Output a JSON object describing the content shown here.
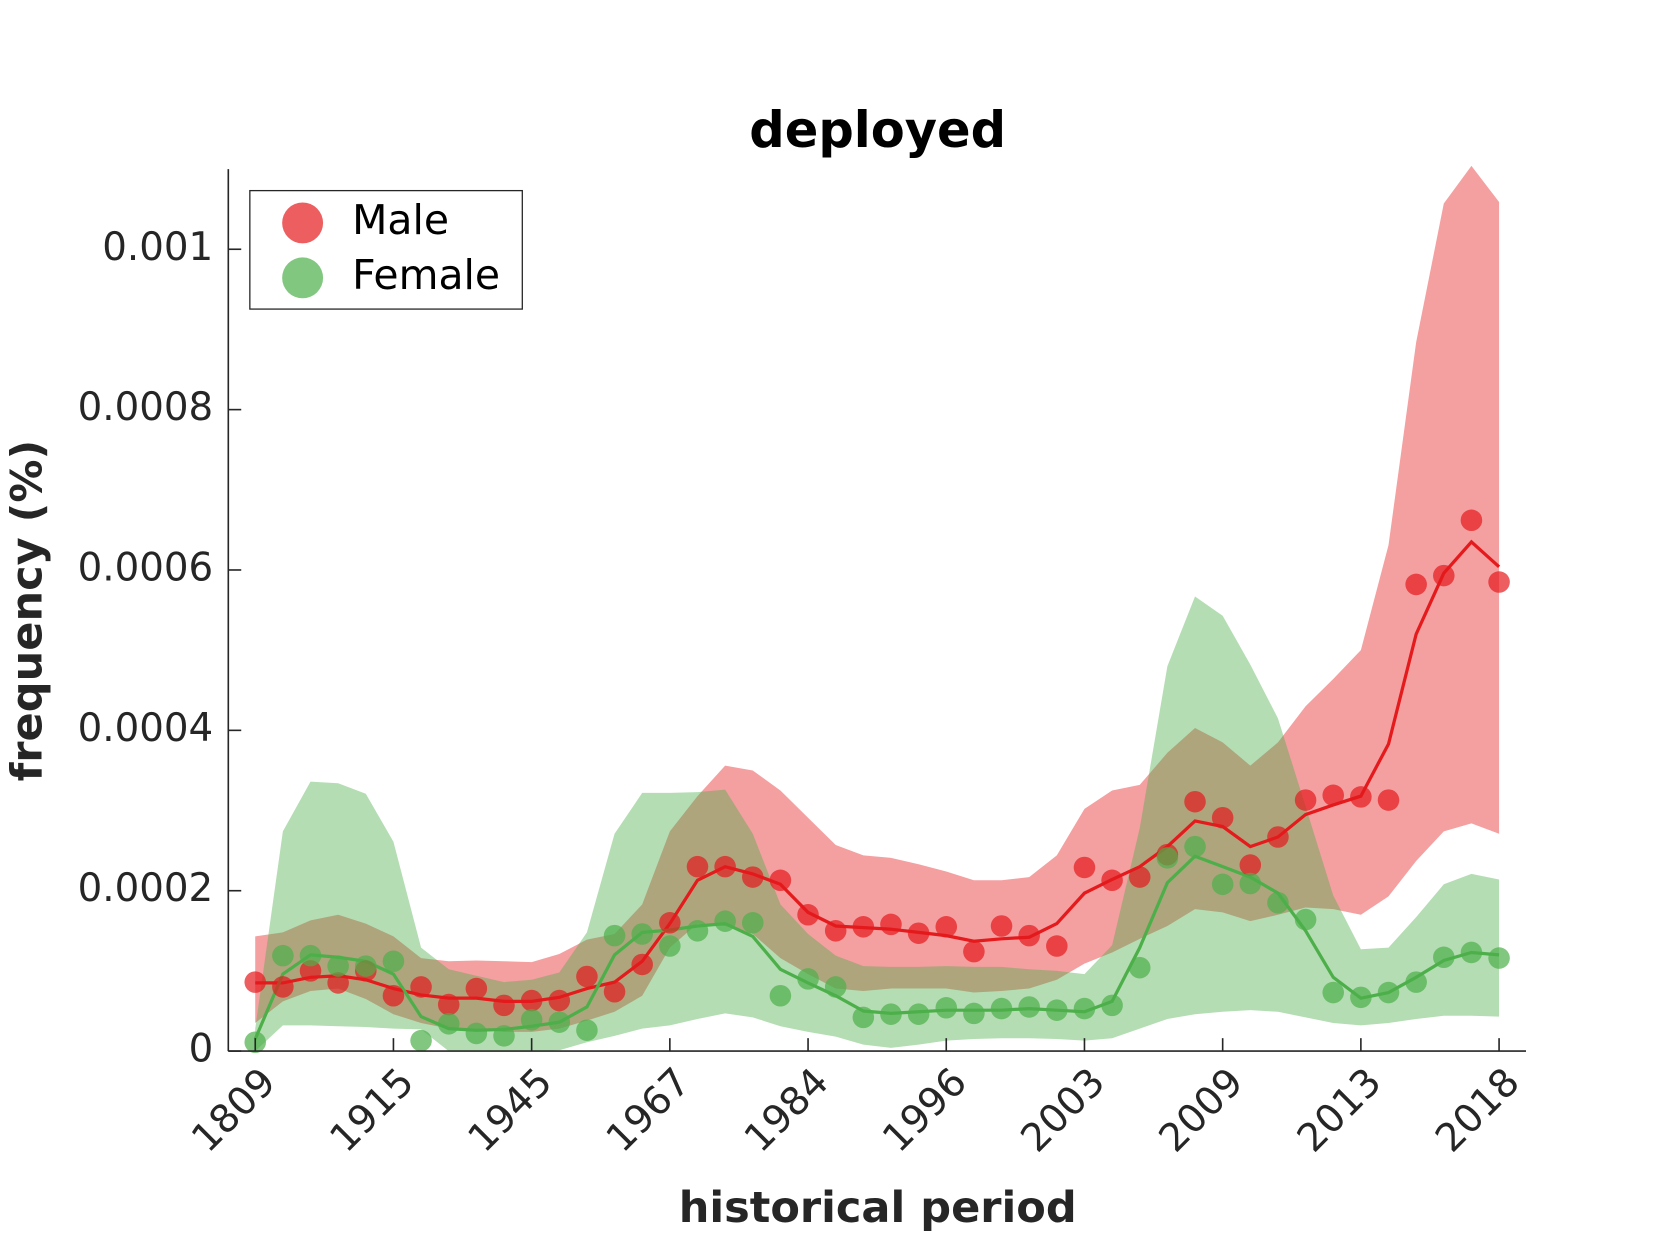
{
  "chart_data": {
    "type": "line",
    "title": "deployed",
    "x_label": "historical period",
    "y_label": "frequency (%)",
    "categories": [
      "1809",
      null,
      null,
      null,
      null,
      "1915",
      null,
      null,
      null,
      null,
      "1945",
      null,
      null,
      null,
      null,
      "1967",
      null,
      null,
      null,
      null,
      "1984",
      null,
      null,
      null,
      null,
      "1996",
      null,
      null,
      null,
      null,
      "2003",
      null,
      null,
      null,
      null,
      "2009",
      null,
      null,
      null,
      null,
      "2013",
      null,
      null,
      null,
      null,
      "2018"
    ],
    "ylim": [
      0,
      0.0011
    ],
    "yticks": [
      0,
      0.0002,
      0.0004,
      0.0006,
      0.0008,
      0.001
    ],
    "legend": "upper left",
    "series": [
      {
        "name": "Male",
        "color": "#e41a1c",
        "values": [
          8.6e-05,
          8e-05,
          0.0001,
          8.5e-05,
          0.0001,
          6.9e-05,
          8e-05,
          5.8e-05,
          7.8e-05,
          5.7e-05,
          6.3e-05,
          6.3e-05,
          9.3e-05,
          7.4e-05,
          0.000108,
          0.00016,
          0.00023,
          0.00023,
          0.000217,
          0.000213,
          0.00017,
          0.00015,
          0.000155,
          0.000158,
          0.000147,
          0.000155,
          0.000124,
          0.000156,
          0.000144,
          0.000131,
          0.000229,
          0.000213,
          0.000217,
          0.000245,
          0.000311,
          0.000291,
          0.000232,
          0.000267,
          0.000313,
          0.000319,
          0.000317,
          0.000313,
          0.000582,
          0.000593,
          0.000662,
          0.000585
        ],
        "trend": [
          8.5e-05,
          8.5e-05,
          9.2e-05,
          9.4e-05,
          8.9e-05,
          7.8e-05,
          7e-05,
          6.6e-05,
          6.6e-05,
          6.2e-05,
          6.2e-05,
          6.7e-05,
          7.8e-05,
          8.6e-05,
          0.000112,
          0.000159,
          0.000213,
          0.00023,
          0.000221,
          0.000208,
          0.000173,
          0.000156,
          0.000154,
          0.000152,
          0.000148,
          0.000144,
          0.000137,
          0.00014,
          0.000142,
          0.000159,
          0.000197,
          0.000214,
          0.00023,
          0.000255,
          0.000287,
          0.00028,
          0.000255,
          0.000267,
          0.000295,
          0.000307,
          0.000318,
          0.000383,
          0.00052,
          0.000596,
          0.000635,
          0.000604
        ],
        "upper": [
          0.000143,
          0.000148,
          0.000163,
          0.00017,
          0.000159,
          0.000143,
          0.000116,
          0.000112,
          0.000113,
          0.000112,
          0.000111,
          0.000121,
          0.000139,
          0.000146,
          0.000183,
          0.000274,
          0.000318,
          0.000356,
          0.00035,
          0.000325,
          0.000291,
          0.000257,
          0.000244,
          0.000241,
          0.000233,
          0.000224,
          0.000213,
          0.000213,
          0.000217,
          0.000244,
          0.000302,
          0.000325,
          0.000332,
          0.000372,
          0.000403,
          0.000385,
          0.000356,
          0.000385,
          0.00043,
          0.000464,
          0.0005,
          0.000631,
          0.000884,
          0.001057,
          0.001104,
          0.001059
        ],
        "lower": [
          3.5e-05,
          6.2e-05,
          7.5e-05,
          7.8e-05,
          6.5e-05,
          4.6e-05,
          3.5e-05,
          2.8e-05,
          2.8e-05,
          2.4e-05,
          2.4e-05,
          2.8e-05,
          3.8e-05,
          4.9e-05,
          6.9e-05,
          0.000129,
          0.000159,
          0.000156,
          0.000146,
          0.000116,
          9.6e-05,
          7.8e-05,
          7.5e-05,
          7.8e-05,
          7.8e-05,
          7.8e-05,
          7.3e-05,
          7.5e-05,
          7.8e-05,
          8.9e-05,
          0.000109,
          0.000123,
          0.00014,
          0.000156,
          0.000177,
          0.000173,
          0.000162,
          0.00017,
          0.000179,
          0.000177,
          0.00017,
          0.000193,
          0.000237,
          0.000274,
          0.000284,
          0.000271
        ]
      },
      {
        "name": "Female",
        "color": "#4daf4a",
        "values": [
          1.1e-05,
          0.000119,
          0.000119,
          0.000106,
          0.000106,
          0.000112,
          1.3e-05,
          3.4e-05,
          2.2e-05,
          1.9e-05,
          3.9e-05,
          3.6e-05,
          2.6e-05,
          0.000144,
          0.000146,
          0.000131,
          0.00015,
          0.000162,
          0.00016,
          6.9e-05,
          9e-05,
          8e-05,
          4.2e-05,
          4.6e-05,
          4.6e-05,
          5.4e-05,
          4.7e-05,
          5.3e-05,
          5.5e-05,
          5.1e-05,
          5.3e-05,
          5.7e-05,
          0.000104,
          0.000241,
          0.000255,
          0.000208,
          0.000209,
          0.000185,
          0.000164,
          7.3e-05,
          6.7e-05,
          7.3e-05,
          8.6e-05,
          0.000117,
          0.000123,
          0.000116
        ],
        "trend": [
          1.5e-05,
          9.6e-05,
          0.00012,
          0.000117,
          0.000112,
          9.6e-05,
          4.3e-05,
          2.8e-05,
          2.6e-05,
          2.7e-05,
          3.1e-05,
          3.6e-05,
          5.5e-05,
          0.00012,
          0.000148,
          0.000151,
          0.000156,
          0.000159,
          0.000143,
          0.000102,
          8.5e-05,
          6.9e-05,
          5e-05,
          4.7e-05,
          4.9e-05,
          5.1e-05,
          5.1e-05,
          5.1e-05,
          5.3e-05,
          5.1e-05,
          4.9e-05,
          6.2e-05,
          0.000129,
          0.00021,
          0.000243,
          0.00023,
          0.000217,
          0.000197,
          0.00015,
          9.2e-05,
          6.6e-05,
          7.3e-05,
          9.2e-05,
          0.000113,
          0.000123,
          0.00012
        ],
        "upper": [
          2.8e-05,
          0.000274,
          0.000336,
          0.000334,
          0.000321,
          0.000261,
          0.000129,
          0.000102,
          9.4e-05,
          8.6e-05,
          8.9e-05,
          9.8e-05,
          0.000148,
          0.000271,
          0.000322,
          0.000322,
          0.000323,
          0.000326,
          0.000271,
          0.000183,
          0.000146,
          0.000119,
          0.000106,
          0.000105,
          0.000105,
          0.000106,
          0.000105,
          0.000105,
          0.000102,
          0.0001,
          9.6e-05,
          0.000132,
          0.000278,
          0.00048,
          0.000567,
          0.000543,
          0.000482,
          0.000415,
          0.000305,
          0.000194,
          0.000127,
          0.000129,
          0.000167,
          0.000208,
          0.000221,
          0.000214
        ],
        "lower": [
          0,
          3.2e-05,
          3.2e-05,
          3.1e-05,
          3e-05,
          2.8e-05,
          2.7e-05,
          0,
          0,
          0,
          0,
          1e-06,
          1.1e-05,
          1.9e-05,
          2.8e-05,
          3.2e-05,
          4e-05,
          4.7e-05,
          4.2e-05,
          3.1e-05,
          2.4e-05,
          1.8e-05,
          8e-06,
          4e-06,
          8e-06,
          1.3e-05,
          1.5e-05,
          1.6e-05,
          1.6e-05,
          1.5e-05,
          1.3e-05,
          1.6e-05,
          2.8e-05,
          4e-05,
          4.6e-05,
          4.9e-05,
          5.1e-05,
          4.9e-05,
          4.2e-05,
          3.5e-05,
          3.2e-05,
          3.5e-05,
          4e-05,
          4.4e-05,
          4.4e-05,
          4.3e-05
        ]
      }
    ]
  }
}
